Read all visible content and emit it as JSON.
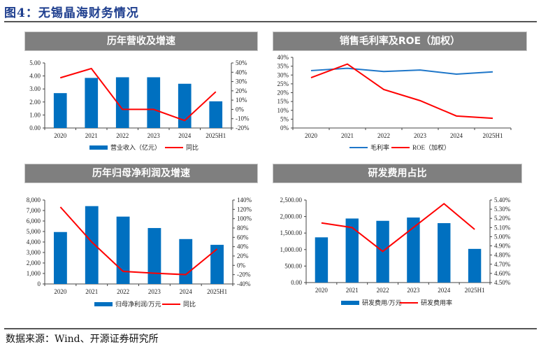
{
  "figure_title": "图4：无锡晶海财务情况",
  "source_note": "数据来源：Wind、开源证券研究所",
  "colors": {
    "bar": "#0070c0",
    "line_red": "#ff0000",
    "line_blue": "#1f77c9",
    "header_bg": "#7f7f7f"
  },
  "chart_data": [
    {
      "id": "revenue",
      "type": "bar+line",
      "title": "历年营收及增速",
      "categories": [
        "2020",
        "2021",
        "2022",
        "2023",
        "2024",
        "2025H1"
      ],
      "series": [
        {
          "name": "营业收入（亿元）",
          "type": "bar",
          "axis": "left",
          "values": [
            2.68,
            3.85,
            3.9,
            3.9,
            3.4,
            2.05
          ]
        },
        {
          "name": "同比",
          "type": "line",
          "axis": "right",
          "values": [
            34,
            44,
            0,
            0,
            -12,
            19
          ]
        }
      ],
      "left_axis": {
        "min": 0,
        "max": 5,
        "step": 1,
        "ticks": [
          "0.00",
          "1.00",
          "2.00",
          "3.00",
          "4.00",
          "5.00"
        ]
      },
      "right_axis": {
        "min": -20,
        "max": 50,
        "step": 10,
        "ticks": [
          "-20%",
          "-10%",
          "0%",
          "10%",
          "20%",
          "30%",
          "40%",
          "50%"
        ]
      },
      "legend": "bottom"
    },
    {
      "id": "margin",
      "type": "line",
      "title": "销售毛利率及ROE（加权）",
      "categories": [
        "2020",
        "2021",
        "2022",
        "2023",
        "2024",
        "2025H1"
      ],
      "series": [
        {
          "name": "毛利率",
          "type": "line",
          "axis": "left",
          "color": "#1f77c9",
          "values": [
            32.5,
            33.8,
            32.0,
            32.8,
            30.5,
            31.8
          ]
        },
        {
          "name": "ROE（加权）",
          "type": "line",
          "axis": "left",
          "color": "#ff0000",
          "values": [
            28.5,
            36.2,
            21.8,
            15.5,
            6.8,
            5.5
          ]
        }
      ],
      "left_axis": {
        "min": 0,
        "max": 40,
        "step": 5,
        "ticks": [
          "0%",
          "5%",
          "10%",
          "15%",
          "20%",
          "25%",
          "30%",
          "35%",
          "40%"
        ]
      },
      "legend": "bottom"
    },
    {
      "id": "profit",
      "type": "bar+line",
      "title": "历年归母净利润及增速",
      "categories": [
        "2020",
        "2021",
        "2022",
        "2023",
        "2024",
        "2025H1"
      ],
      "series": [
        {
          "name": "归母净利润/万元",
          "type": "bar",
          "axis": "left",
          "values": [
            4950,
            7420,
            6420,
            5330,
            4280,
            3730
          ]
        },
        {
          "name": "同比",
          "type": "line",
          "axis": "right",
          "values": [
            125,
            50,
            -13,
            -17,
            -20,
            35
          ]
        }
      ],
      "left_axis": {
        "min": 0,
        "max": 8000,
        "step": 1000,
        "ticks": [
          "0",
          "1,000",
          "2,000",
          "3,000",
          "4,000",
          "5,000",
          "6,000",
          "7,000",
          "8,000"
        ]
      },
      "right_axis": {
        "min": -40,
        "max": 140,
        "step": 20,
        "ticks": [
          "-40%",
          "-20%",
          "0%",
          "20%",
          "40%",
          "60%",
          "80%",
          "100%",
          "120%",
          "140%"
        ]
      },
      "legend": "bottom"
    },
    {
      "id": "rnd",
      "type": "bar+line",
      "title": "研发费用占比",
      "categories": [
        "2020",
        "2021",
        "2022",
        "2023",
        "2024",
        "2025H1"
      ],
      "series": [
        {
          "name": "研发费用/万元",
          "type": "bar",
          "axis": "left",
          "values": [
            1370,
            1940,
            1870,
            1970,
            1800,
            1020
          ]
        },
        {
          "name": "研发费用率",
          "type": "line",
          "axis": "right",
          "values": [
            5.15,
            5.1,
            4.84,
            5.1,
            5.36,
            5.08
          ]
        }
      ],
      "left_axis": {
        "min": 0,
        "max": 2500,
        "step": 500,
        "ticks": [
          "0.00",
          "500.00",
          "1,000.00",
          "1,500.00",
          "2,000.00",
          "2,500.00"
        ]
      },
      "right_axis": {
        "min": 4.5,
        "max": 5.4,
        "step": 0.1,
        "ticks": [
          "4.50%",
          "4.60%",
          "4.70%",
          "4.80%",
          "4.90%",
          "5.00%",
          "5.10%",
          "5.20%",
          "5.30%",
          "5.40%"
        ]
      },
      "legend": "bottom"
    }
  ]
}
